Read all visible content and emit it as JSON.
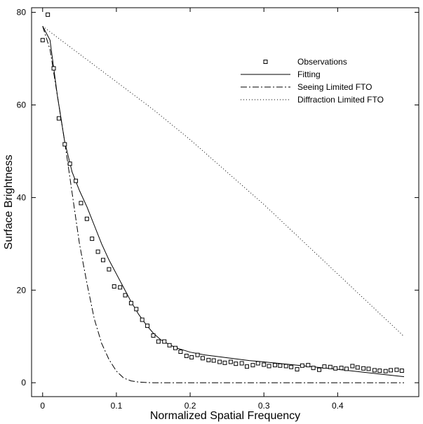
{
  "chart_data": {
    "type": "scatter",
    "title": "",
    "xlabel": "Normalized Spatial Frequency",
    "ylabel": "Surface Brightness",
    "xlim": [
      -0.015,
      0.51
    ],
    "ylim": [
      -3,
      81
    ],
    "x_ticks": [
      0,
      0.1,
      0.2,
      0.3,
      0.4
    ],
    "x_tick_labels": [
      "0",
      "0.1",
      "0.2",
      "0.3",
      "0.4"
    ],
    "y_ticks": [
      0,
      20,
      40,
      60,
      80
    ],
    "y_tick_labels": [
      "0",
      "20",
      "40",
      "60",
      "80"
    ],
    "grid": false,
    "legend_position": "top-right",
    "series": [
      {
        "name": "Observations",
        "style": "markers",
        "x": [
          0.0,
          0.007,
          0.015,
          0.022,
          0.03,
          0.037,
          0.045,
          0.052,
          0.06,
          0.067,
          0.075,
          0.082,
          0.09,
          0.097,
          0.105,
          0.112,
          0.12,
          0.127,
          0.135,
          0.142,
          0.15,
          0.157,
          0.165,
          0.172,
          0.18,
          0.187,
          0.195,
          0.202,
          0.21,
          0.217,
          0.225,
          0.232,
          0.24,
          0.247,
          0.255,
          0.262,
          0.27,
          0.277,
          0.285,
          0.292,
          0.3,
          0.307,
          0.315,
          0.322,
          0.33,
          0.337,
          0.345,
          0.352,
          0.36,
          0.367,
          0.375,
          0.382,
          0.39,
          0.397,
          0.405,
          0.412,
          0.42,
          0.427,
          0.435,
          0.442,
          0.45,
          0.457,
          0.465,
          0.472,
          0.48,
          0.487
        ],
        "y": [
          74.0,
          79.5,
          67.9,
          57.1,
          51.5,
          47.3,
          43.6,
          38.8,
          35.4,
          31.1,
          28.3,
          26.5,
          24.5,
          20.8,
          20.6,
          18.9,
          17.2,
          15.9,
          13.6,
          12.3,
          10.2,
          8.9,
          8.9,
          8.1,
          7.5,
          6.7,
          5.8,
          5.5,
          6.0,
          5.3,
          4.9,
          4.8,
          4.5,
          4.3,
          4.5,
          4.1,
          4.2,
          3.5,
          3.8,
          4.2,
          3.9,
          3.6,
          3.8,
          3.7,
          3.6,
          3.4,
          2.9,
          3.7,
          3.8,
          3.2,
          2.8,
          3.5,
          3.4,
          3.1,
          3.2,
          3.0,
          3.6,
          3.3,
          3.1,
          3.0,
          2.7,
          2.6,
          2.5,
          2.7,
          2.8,
          2.6
        ]
      },
      {
        "name": "Fitting",
        "style": "solid",
        "x": [
          0.0,
          0.01,
          0.02,
          0.03,
          0.04,
          0.05,
          0.06,
          0.07,
          0.08,
          0.09,
          0.1,
          0.11,
          0.12,
          0.13,
          0.14,
          0.15,
          0.16,
          0.17,
          0.18,
          0.2,
          0.22,
          0.25,
          0.28,
          0.3,
          0.35,
          0.4,
          0.45,
          0.49
        ],
        "y": [
          77.0,
          74.0,
          62.0,
          52.0,
          45.5,
          41.5,
          38.0,
          34.0,
          30.0,
          26.5,
          23.5,
          20.5,
          17.5,
          14.8,
          12.6,
          10.7,
          9.3,
          8.4,
          7.6,
          6.6,
          6.0,
          5.4,
          4.8,
          4.5,
          3.7,
          2.9,
          2.0,
          1.3
        ]
      },
      {
        "name": "Seeing Limited FTO",
        "style": "dashdot",
        "x": [
          0.0,
          0.01,
          0.02,
          0.03,
          0.04,
          0.05,
          0.06,
          0.07,
          0.08,
          0.09,
          0.1,
          0.11,
          0.12,
          0.13,
          0.14,
          0.15,
          0.2,
          0.3,
          0.4,
          0.49
        ],
        "y": [
          77.0,
          72.0,
          62.0,
          52.0,
          41.0,
          30.0,
          21.5,
          13.8,
          8.5,
          5.0,
          2.5,
          1.0,
          0.4,
          0.15,
          0.05,
          0.0,
          0.0,
          0.0,
          0.0,
          0.0
        ]
      },
      {
        "name": "Diffraction Limited FTO",
        "style": "dotted",
        "x": [
          0.0,
          0.05,
          0.1,
          0.15,
          0.2,
          0.25,
          0.3,
          0.35,
          0.4,
          0.45,
          0.49
        ],
        "y": [
          77.0,
          71.0,
          65.0,
          59.0,
          52.5,
          45.5,
          38.5,
          31.0,
          23.5,
          16.0,
          10.0
        ]
      }
    ]
  }
}
